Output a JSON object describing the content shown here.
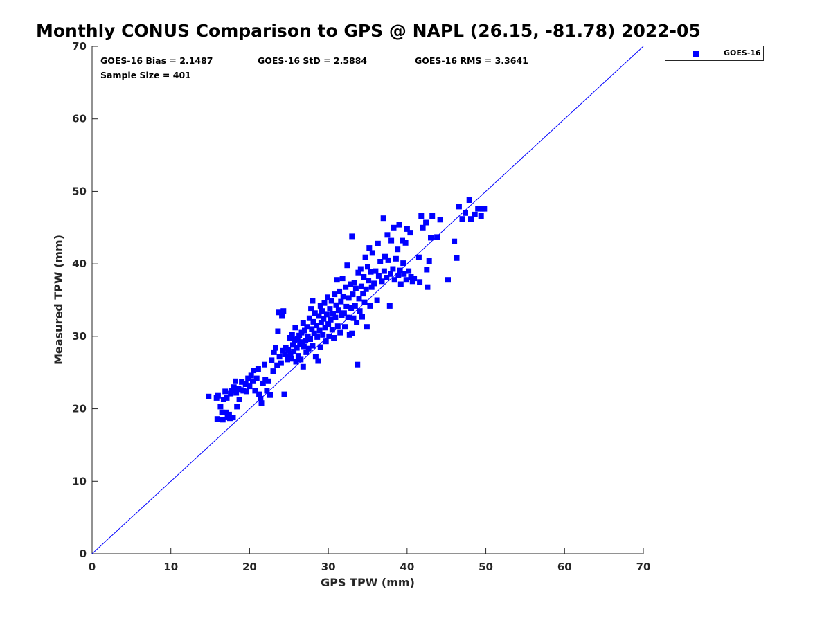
{
  "chart_data": {
    "type": "scatter",
    "title": "Monthly CONUS Comparison to GPS @ NAPL (26.15, -81.78) 2022-05",
    "xlabel": "GPS TPW (mm)",
    "ylabel": "Measured TPW (mm)",
    "xlim": [
      0,
      70
    ],
    "ylim": [
      0,
      70
    ],
    "xticks": [
      "0",
      "10",
      "20",
      "30",
      "40",
      "50",
      "60",
      "70"
    ],
    "yticks": [
      "0",
      "10",
      "20",
      "30",
      "40",
      "50",
      "60",
      "70"
    ],
    "grid": false,
    "legend_position": "outside-top-right",
    "stats": {
      "bias": "GOES-16 Bias = 2.1487",
      "std": "GOES-16 StD = 2.5884",
      "rms": "GOES-16 RMS = 3.3641",
      "sample": "Sample Size = 401"
    },
    "reference_line": {
      "type": "1:1",
      "from": [
        0,
        0
      ],
      "to": [
        70,
        70
      ],
      "color": "#0000ff"
    },
    "series": [
      {
        "name": "GOES-16",
        "color": "#0000ff",
        "marker": "square",
        "points": [
          [
            14.8,
            21.7
          ],
          [
            15.8,
            21.5
          ],
          [
            15.9,
            18.6
          ],
          [
            16.0,
            21.8
          ],
          [
            16.3,
            20.3
          ],
          [
            16.5,
            19.5
          ],
          [
            16.6,
            18.5
          ],
          [
            16.7,
            21.3
          ],
          [
            16.9,
            22.4
          ],
          [
            17.0,
            19.5
          ],
          [
            17.1,
            21.5
          ],
          [
            17.2,
            18.8
          ],
          [
            17.4,
            19.2
          ],
          [
            17.5,
            18.7
          ],
          [
            17.6,
            22.1
          ],
          [
            17.7,
            22.5
          ],
          [
            17.9,
            18.8
          ],
          [
            18.0,
            23.0
          ],
          [
            18.2,
            23.8
          ],
          [
            18.3,
            22.2
          ],
          [
            18.4,
            20.3
          ],
          [
            18.6,
            22.8
          ],
          [
            18.7,
            21.3
          ],
          [
            18.9,
            22.6
          ],
          [
            19.0,
            23.7
          ],
          [
            19.2,
            22.5
          ],
          [
            19.5,
            23.4
          ],
          [
            19.6,
            22.4
          ],
          [
            19.8,
            24.2
          ],
          [
            20.0,
            23.1
          ],
          [
            20.2,
            24.6
          ],
          [
            20.4,
            23.8
          ],
          [
            20.5,
            25.3
          ],
          [
            20.7,
            22.5
          ],
          [
            20.9,
            24.2
          ],
          [
            21.1,
            25.5
          ],
          [
            21.2,
            22.0
          ],
          [
            21.4,
            21.4
          ],
          [
            21.5,
            20.8
          ],
          [
            21.7,
            23.5
          ],
          [
            21.9,
            26.1
          ],
          [
            22.0,
            24.0
          ],
          [
            22.2,
            22.5
          ],
          [
            22.4,
            23.8
          ],
          [
            22.6,
            21.9
          ],
          [
            22.8,
            26.7
          ],
          [
            23.0,
            25.2
          ],
          [
            23.1,
            27.8
          ],
          [
            23.3,
            28.4
          ],
          [
            23.5,
            26.0
          ],
          [
            23.6,
            30.7
          ],
          [
            23.7,
            33.3
          ],
          [
            23.8,
            27.2
          ],
          [
            24.0,
            26.3
          ],
          [
            24.1,
            32.8
          ],
          [
            24.2,
            28.0
          ],
          [
            24.3,
            33.5
          ],
          [
            24.4,
            22.0
          ],
          [
            24.5,
            27.5
          ],
          [
            24.6,
            28.4
          ],
          [
            24.8,
            26.8
          ],
          [
            24.9,
            28.1
          ],
          [
            25.0,
            27.2
          ],
          [
            25.1,
            29.8
          ],
          [
            25.2,
            27.6
          ],
          [
            25.3,
            26.9
          ],
          [
            25.4,
            30.2
          ],
          [
            25.5,
            28.8
          ],
          [
            25.6,
            27.9
          ],
          [
            25.7,
            29.5
          ],
          [
            25.8,
            31.2
          ],
          [
            25.9,
            26.5
          ],
          [
            26.0,
            28.4
          ],
          [
            26.1,
            29.6
          ],
          [
            26.2,
            27.3
          ],
          [
            26.3,
            30.1
          ],
          [
            26.4,
            28.9
          ],
          [
            26.5,
            26.8
          ],
          [
            26.6,
            30.5
          ],
          [
            26.7,
            29.2
          ],
          [
            26.8,
            31.8
          ],
          [
            26.8,
            25.8
          ],
          [
            26.9,
            28.6
          ],
          [
            27.0,
            30.8
          ],
          [
            27.1,
            29.4
          ],
          [
            27.2,
            27.8
          ],
          [
            27.3,
            31.3
          ],
          [
            27.4,
            30.0
          ],
          [
            27.5,
            28.3
          ],
          [
            27.6,
            32.5
          ],
          [
            27.7,
            29.6
          ],
          [
            27.8,
            33.8
          ],
          [
            27.9,
            31.0
          ],
          [
            28.0,
            34.9
          ],
          [
            28.0,
            28.7
          ],
          [
            28.1,
            32.0
          ],
          [
            28.2,
            30.4
          ],
          [
            28.3,
            33.2
          ],
          [
            28.4,
            27.2
          ],
          [
            28.5,
            31.5
          ],
          [
            28.6,
            29.9
          ],
          [
            28.7,
            26.6
          ],
          [
            28.8,
            32.8
          ],
          [
            28.9,
            30.8
          ],
          [
            29.0,
            34.2
          ],
          [
            29.0,
            28.5
          ],
          [
            29.1,
            31.9
          ],
          [
            29.2,
            33.5
          ],
          [
            29.3,
            30.2
          ],
          [
            29.4,
            32.4
          ],
          [
            29.5,
            34.6
          ],
          [
            29.6,
            31.2
          ],
          [
            29.7,
            29.3
          ],
          [
            29.8,
            33.0
          ],
          [
            29.9,
            35.4
          ],
          [
            30.0,
            31.7
          ],
          [
            30.1,
            30.0
          ],
          [
            30.2,
            33.8
          ],
          [
            30.3,
            32.3
          ],
          [
            30.4,
            34.9
          ],
          [
            30.5,
            30.9
          ],
          [
            30.6,
            33.1
          ],
          [
            30.7,
            29.8
          ],
          [
            30.8,
            35.8
          ],
          [
            30.9,
            32.6
          ],
          [
            31.0,
            34.3
          ],
          [
            31.1,
            37.8
          ],
          [
            31.2,
            31.4
          ],
          [
            31.3,
            33.6
          ],
          [
            31.4,
            36.2
          ],
          [
            31.5,
            30.5
          ],
          [
            31.6,
            34.8
          ],
          [
            31.7,
            32.9
          ],
          [
            31.8,
            38.0
          ],
          [
            31.9,
            35.5
          ],
          [
            32.0,
            33.2
          ],
          [
            32.1,
            31.3
          ],
          [
            32.2,
            36.8
          ],
          [
            32.3,
            34.1
          ],
          [
            32.4,
            39.8
          ],
          [
            32.5,
            32.6
          ],
          [
            32.6,
            35.3
          ],
          [
            32.7,
            30.2
          ],
          [
            32.8,
            37.2
          ],
          [
            32.9,
            33.9
          ],
          [
            33.0,
            43.8
          ],
          [
            33.0,
            30.4
          ],
          [
            33.1,
            35.8
          ],
          [
            33.2,
            32.5
          ],
          [
            33.3,
            37.4
          ],
          [
            33.4,
            34.2
          ],
          [
            33.5,
            36.6
          ],
          [
            33.6,
            31.9
          ],
          [
            33.7,
            26.1
          ],
          [
            33.8,
            38.8
          ],
          [
            33.9,
            35.2
          ],
          [
            34.0,
            33.5
          ],
          [
            34.1,
            39.3
          ],
          [
            34.2,
            36.9
          ],
          [
            34.3,
            32.7
          ],
          [
            34.4,
            35.9
          ],
          [
            34.5,
            38.2
          ],
          [
            34.6,
            34.7
          ],
          [
            34.7,
            40.9
          ],
          [
            34.8,
            36.5
          ],
          [
            34.9,
            31.3
          ],
          [
            35.0,
            39.6
          ],
          [
            35.1,
            37.7
          ],
          [
            35.2,
            42.2
          ],
          [
            35.3,
            34.2
          ],
          [
            35.4,
            38.9
          ],
          [
            35.5,
            36.8
          ],
          [
            35.6,
            41.5
          ],
          [
            35.8,
            37.3
          ],
          [
            36.0,
            39.0
          ],
          [
            36.2,
            35.0
          ],
          [
            36.3,
            42.8
          ],
          [
            36.4,
            38.3
          ],
          [
            36.6,
            40.3
          ],
          [
            36.8,
            37.6
          ],
          [
            37.0,
            46.3
          ],
          [
            37.1,
            39.0
          ],
          [
            37.2,
            41.0
          ],
          [
            37.4,
            38.1
          ],
          [
            37.5,
            44.0
          ],
          [
            37.6,
            40.5
          ],
          [
            37.8,
            34.2
          ],
          [
            37.9,
            38.6
          ],
          [
            38.0,
            43.2
          ],
          [
            38.2,
            39.3
          ],
          [
            38.3,
            45.0
          ],
          [
            38.4,
            37.8
          ],
          [
            38.6,
            40.7
          ],
          [
            38.8,
            42.0
          ],
          [
            38.9,
            38.4
          ],
          [
            39.0,
            45.4
          ],
          [
            39.1,
            39.1
          ],
          [
            39.2,
            37.2
          ],
          [
            39.4,
            43.2
          ],
          [
            39.5,
            40.1
          ],
          [
            39.6,
            38.6
          ],
          [
            39.8,
            42.9
          ],
          [
            39.9,
            37.8
          ],
          [
            40.0,
            44.8
          ],
          [
            40.2,
            39.0
          ],
          [
            40.4,
            44.3
          ],
          [
            40.5,
            38.2
          ],
          [
            40.7,
            37.6
          ],
          [
            40.9,
            38.0
          ],
          [
            41.5,
            40.9
          ],
          [
            41.6,
            37.5
          ],
          [
            41.8,
            46.6
          ],
          [
            42.0,
            45.0
          ],
          [
            42.4,
            45.7
          ],
          [
            42.5,
            39.2
          ],
          [
            42.6,
            36.8
          ],
          [
            42.8,
            40.4
          ],
          [
            43.0,
            43.6
          ],
          [
            43.2,
            46.6
          ],
          [
            43.8,
            43.7
          ],
          [
            44.2,
            46.1
          ],
          [
            45.2,
            37.8
          ],
          [
            46.0,
            43.1
          ],
          [
            46.3,
            40.8
          ],
          [
            46.6,
            47.9
          ],
          [
            47.0,
            46.2
          ],
          [
            47.4,
            47.0
          ],
          [
            47.9,
            48.8
          ],
          [
            48.1,
            46.2
          ],
          [
            48.6,
            46.8
          ],
          [
            49.0,
            47.6
          ],
          [
            49.4,
            46.6
          ],
          [
            49.6,
            47.6
          ],
          [
            49.8,
            47.6
          ]
        ]
      }
    ]
  }
}
